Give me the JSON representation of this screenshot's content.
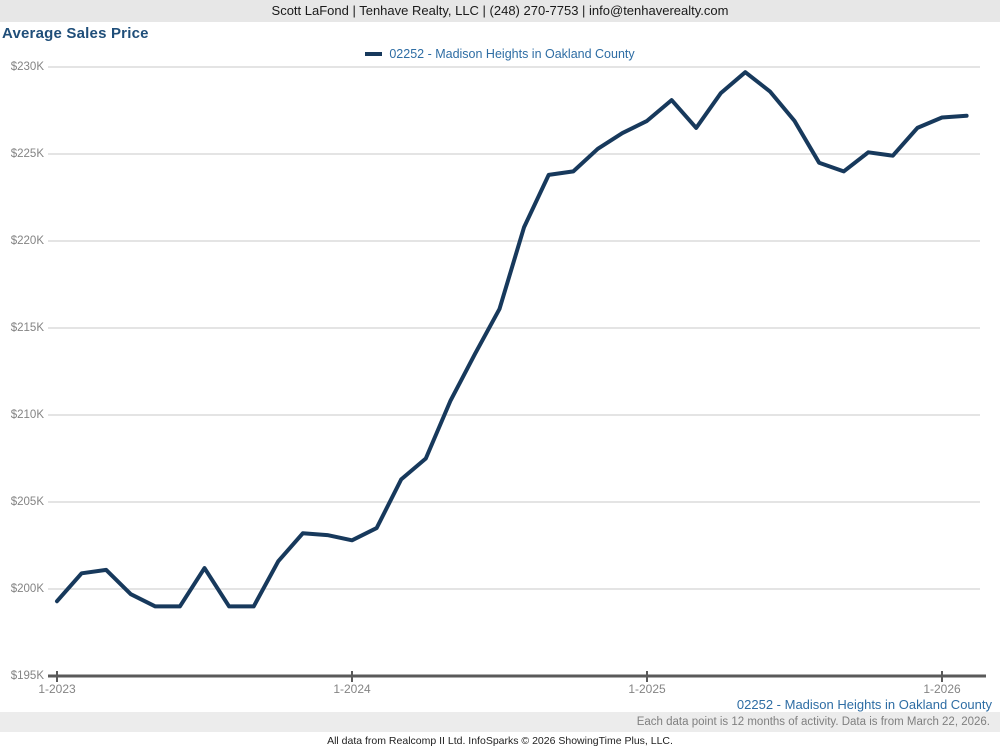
{
  "header": {
    "contact_line": "Scott LaFond | Tenhave Realty, LLC | (248) 270-7753 | info@tenhaverealty.com"
  },
  "title": "Average Sales Price",
  "legend": {
    "label": "02252 - Madison Heights in Oakland County"
  },
  "footer": {
    "series_label": "02252 - Madison Heights in Oakland County",
    "note": "Each data point is 12 months of activity. Data is from March 22, 2026.",
    "attribution": "All data from Realcomp II Ltd. InfoSparks © 2026 ShowingTime Plus, LLC."
  },
  "colors": {
    "line": "#17395c",
    "title_blue": "#1f4e79",
    "legend_blue": "#2e6da4",
    "axis_text": "#848484",
    "gridline": "#c9c9c9",
    "axis_line": "#5a5a5a",
    "header_bg": "#e7e7e7",
    "note_strip_bg": "#ececec"
  },
  "chart_data": {
    "type": "line",
    "title": "Average Sales Price",
    "x_start_month": "2023-01",
    "x_end_month": "2026-02",
    "x_months": [
      "2023-01",
      "2023-02",
      "2023-03",
      "2023-04",
      "2023-05",
      "2023-06",
      "2023-07",
      "2023-08",
      "2023-09",
      "2023-10",
      "2023-11",
      "2023-12",
      "2024-01",
      "2024-02",
      "2024-03",
      "2024-04",
      "2024-05",
      "2024-06",
      "2024-07",
      "2024-08",
      "2024-09",
      "2024-10",
      "2024-11",
      "2024-12",
      "2025-01",
      "2025-02",
      "2025-03",
      "2025-04",
      "2025-05",
      "2025-06",
      "2025-07",
      "2025-08",
      "2025-09",
      "2025-10",
      "2025-11",
      "2025-12",
      "2026-01",
      "2026-02"
    ],
    "series": [
      {
        "name": "02252 - Madison Heights in Oakland County",
        "color": "#17395c",
        "unit": "USD thousands",
        "values": [
          199.3,
          200.9,
          201.1,
          199.7,
          199.0,
          199.0,
          201.2,
          199.0,
          199.0,
          201.6,
          203.2,
          203.1,
          202.8,
          203.5,
          206.3,
          207.5,
          210.8,
          213.5,
          216.1,
          220.8,
          223.8,
          224.0,
          225.3,
          226.2,
          226.9,
          228.1,
          226.5,
          228.5,
          229.7,
          228.6,
          226.9,
          224.5,
          224.0,
          225.1,
          224.9,
          226.5,
          227.1,
          227.2
        ]
      }
    ],
    "ylim": [
      195,
      230
    ],
    "ylabel": "",
    "xlabel": "",
    "y_tick_step": 5,
    "ytick_labels": [
      "$195K",
      "$200K",
      "$205K",
      "$210K",
      "$215K",
      "$220K",
      "$225K",
      "$230K"
    ],
    "xtick_labels": [
      "1-2023",
      "1-2024",
      "1-2025",
      "1-2026"
    ],
    "grid": "horizontal",
    "legend_position": "top-center"
  }
}
